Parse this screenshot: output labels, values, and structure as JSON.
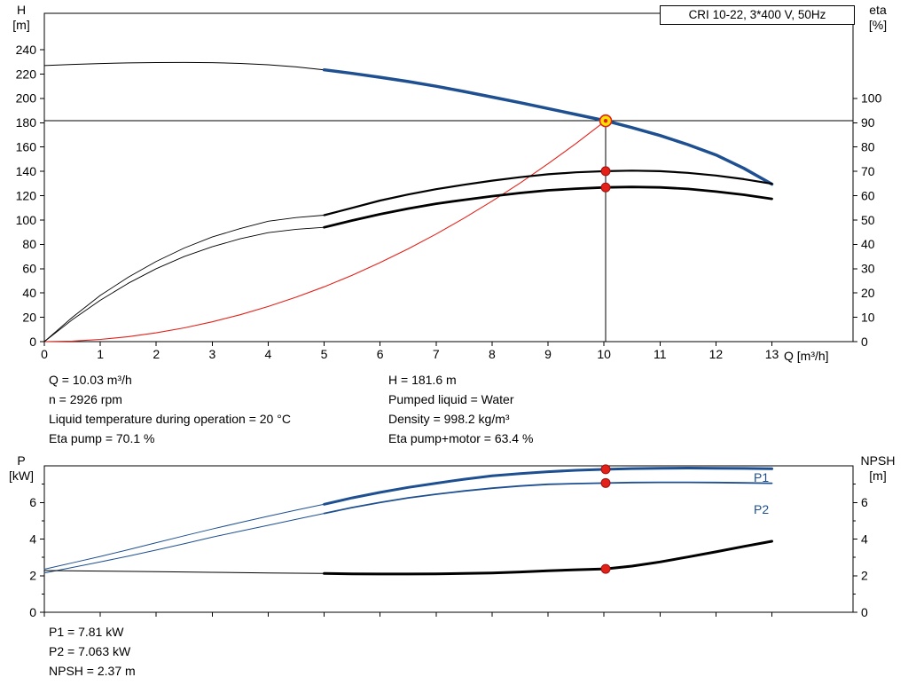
{
  "colors": {
    "blue": "#1d4f91",
    "red": "#e32119",
    "black": "#000000",
    "duty_fill": "#ffe000",
    "duty_ring": "#e32119",
    "dot": "#e32119",
    "dot_edge": "#9b1410"
  },
  "info_top": {
    "left": [
      "Q = 10.03 m³/h",
      "n = 2926 rpm",
      "Liquid temperature during operation = 20 °C",
      "Eta pump = 70.1 %"
    ],
    "right": [
      "H = 181.6 m",
      "Pumped liquid = Water",
      "Density = 998.2 kg/m³",
      "Eta pump+motor = 63.4 %"
    ]
  },
  "info_bottom": [
    "P1 = 7.81 kW",
    "P2 = 7.063 kW",
    "NPSH = 2.37 m"
  ],
  "chart_data": [
    {
      "type": "line",
      "title": "CRI 10-22, 3*400 V, 50Hz",
      "x_axis": {
        "label": "Q [m³/h]",
        "min": 0,
        "max": 14.45,
        "ticks": [
          0,
          1,
          2,
          3,
          4,
          5,
          6,
          7,
          8,
          9,
          10,
          11,
          12,
          13
        ]
      },
      "y_left": {
        "label": "H",
        "unit": "[m]",
        "min": 0,
        "max": 270,
        "ticks": [
          0,
          20,
          40,
          60,
          80,
          100,
          120,
          140,
          160,
          180,
          200,
          220,
          240
        ]
      },
      "y_right": {
        "label": "eta",
        "unit": "[%]",
        "min": 0,
        "max": 135,
        "ticks": [
          0,
          10,
          20,
          30,
          40,
          50,
          60,
          70,
          80,
          90,
          100
        ]
      },
      "crosshair": {
        "q": 10.03,
        "h": 181.6
      },
      "duty_point": {
        "q": 10.03,
        "h": 181.6,
        "eta_pump": 70.1,
        "eta_pump_motor": 63.4
      },
      "series": [
        {
          "name": "head-extension",
          "axis": "left",
          "color": "#000000",
          "width": 1,
          "points": [
            [
              0,
              227
            ],
            [
              0.5,
              228
            ],
            [
              1,
              228.7
            ],
            [
              1.5,
              229.2
            ],
            [
              2,
              229.5
            ],
            [
              2.5,
              229.6
            ],
            [
              3,
              229.4
            ],
            [
              3.5,
              228.8
            ],
            [
              4,
              227.7
            ],
            [
              4.5,
              225.9
            ],
            [
              5,
              223.5
            ]
          ]
        },
        {
          "name": "head-curve",
          "axis": "left",
          "color": "#1d4f91",
          "width": 3.5,
          "points": [
            [
              5,
              223.5
            ],
            [
              5.5,
              220.6
            ],
            [
              6,
              217.4
            ],
            [
              6.5,
              213.9
            ],
            [
              7,
              210
            ],
            [
              7.5,
              205.7
            ],
            [
              8,
              201.1
            ],
            [
              8.5,
              196.5
            ],
            [
              9,
              191.7
            ],
            [
              9.5,
              186.8
            ],
            [
              10.03,
              181.6
            ],
            [
              10.5,
              176
            ],
            [
              11,
              169.5
            ],
            [
              11.5,
              162
            ],
            [
              12,
              153.5
            ],
            [
              12.5,
              142.5
            ],
            [
              13,
              129.5
            ]
          ]
        },
        {
          "name": "system-curve",
          "axis": "left",
          "color": "#e32119",
          "width": 1.1,
          "points": [
            [
              0,
              0
            ],
            [
              0.5,
              0.45
            ],
            [
              1,
              1.81
            ],
            [
              1.5,
              4.06
            ],
            [
              2,
              7.22
            ],
            [
              2.5,
              11.28
            ],
            [
              3,
              16.25
            ],
            [
              3.5,
              22.12
            ],
            [
              4,
              28.88
            ],
            [
              4.5,
              36.56
            ],
            [
              5,
              45.13
            ],
            [
              5.5,
              54.61
            ],
            [
              6,
              64.99
            ],
            [
              6.5,
              76.27
            ],
            [
              7,
              88.46
            ],
            [
              7.5,
              101.55
            ],
            [
              8,
              115.54
            ],
            [
              8.5,
              130.43
            ],
            [
              9,
              146.23
            ],
            [
              9.5,
              162.93
            ],
            [
              10.03,
              181.6
            ]
          ]
        },
        {
          "name": "eta-pump-extension",
          "axis": "right",
          "color": "#000000",
          "width": 0.9,
          "points": [
            [
              0,
              0
            ],
            [
              0.5,
              10
            ],
            [
              1,
              19
            ],
            [
              1.5,
              26.5
            ],
            [
              2,
              33
            ],
            [
              2.5,
              38.5
            ],
            [
              3,
              43
            ],
            [
              3.5,
              46.5
            ],
            [
              4,
              49.5
            ],
            [
              4.5,
              51
            ],
            [
              5,
              52
            ]
          ]
        },
        {
          "name": "eta-pump",
          "axis": "right",
          "color": "#000000",
          "width": 2.2,
          "points": [
            [
              5,
              52
            ],
            [
              5.5,
              55
            ],
            [
              6,
              58
            ],
            [
              6.5,
              60.5
            ],
            [
              7,
              62.7
            ],
            [
              7.5,
              64.5
            ],
            [
              8,
              66.2
            ],
            [
              8.5,
              67.6
            ],
            [
              9,
              68.8
            ],
            [
              9.5,
              69.6
            ],
            [
              10.03,
              70.1
            ],
            [
              10.5,
              70.3
            ],
            [
              11,
              70.1
            ],
            [
              11.5,
              69.4
            ],
            [
              12,
              68.3
            ],
            [
              12.5,
              66.8
            ],
            [
              13,
              64.9
            ]
          ]
        },
        {
          "name": "eta-pump-motor-extension",
          "axis": "right",
          "color": "#000000",
          "width": 0.9,
          "points": [
            [
              0,
              0
            ],
            [
              0.5,
              9
            ],
            [
              1,
              17
            ],
            [
              1.5,
              24
            ],
            [
              2,
              30
            ],
            [
              2.5,
              35
            ],
            [
              3,
              39
            ],
            [
              3.5,
              42.3
            ],
            [
              4,
              44.8
            ],
            [
              4.5,
              46.2
            ],
            [
              5,
              47
            ]
          ]
        },
        {
          "name": "eta-pump-motor",
          "axis": "right",
          "color": "#000000",
          "width": 2.8,
          "points": [
            [
              5,
              47
            ],
            [
              5.5,
              49.8
            ],
            [
              6,
              52.4
            ],
            [
              6.5,
              54.7
            ],
            [
              7,
              56.7
            ],
            [
              7.5,
              58.3
            ],
            [
              8,
              59.8
            ],
            [
              8.5,
              61.1
            ],
            [
              9,
              62.2
            ],
            [
              9.5,
              62.9
            ],
            [
              10.03,
              63.4
            ],
            [
              10.5,
              63.6
            ],
            [
              11,
              63.4
            ],
            [
              11.5,
              62.8
            ],
            [
              12,
              61.7
            ],
            [
              12.5,
              60.4
            ],
            [
              13,
              58.7
            ]
          ]
        }
      ],
      "markers": [
        {
          "type": "duty",
          "axis": "left",
          "x": 10.03,
          "y": 181.6
        },
        {
          "type": "dot",
          "axis": "right",
          "x": 10.03,
          "y": 70.1
        },
        {
          "type": "dot",
          "axis": "right",
          "x": 10.03,
          "y": 63.4
        }
      ]
    },
    {
      "type": "line",
      "x_axis": {
        "label": "",
        "min": 0,
        "max": 14.45,
        "ticks": [
          0,
          1,
          2,
          3,
          4,
          5,
          6,
          7,
          8,
          9,
          10,
          11,
          12,
          13
        ]
      },
      "y_left": {
        "label": "P",
        "unit": "[kW]",
        "min": 0,
        "max": 8,
        "ticks": [
          0,
          2,
          4,
          6
        ],
        "minor_ticks": [
          1,
          3,
          5,
          7
        ]
      },
      "y_right": {
        "label": "NPSH",
        "unit": "[m]",
        "min": 0,
        "max": 8,
        "ticks": [
          0,
          2,
          4,
          6
        ],
        "minor_ticks": [
          1,
          3,
          5,
          7
        ]
      },
      "curve_labels": [
        {
          "text": "P1"
        },
        {
          "text": "P2"
        }
      ],
      "duty_point": {
        "q": 10.03,
        "p1": 7.81,
        "p2": 7.063,
        "npsh": 2.37
      },
      "series": [
        {
          "name": "p1-extension",
          "axis": "left",
          "color": "#1d4f91",
          "width": 1,
          "points": [
            [
              0,
              2.35
            ],
            [
              0.5,
              2.7
            ],
            [
              1,
              3.05
            ],
            [
              1.5,
              3.42
            ],
            [
              2,
              3.8
            ],
            [
              2.5,
              4.18
            ],
            [
              3,
              4.55
            ],
            [
              3.5,
              4.9
            ],
            [
              4,
              5.25
            ],
            [
              4.5,
              5.58
            ],
            [
              5,
              5.9
            ]
          ]
        },
        {
          "name": "p1-curve",
          "axis": "left",
          "color": "#1d4f91",
          "width": 3,
          "points": [
            [
              5,
              5.9
            ],
            [
              5.5,
              6.25
            ],
            [
              6,
              6.55
            ],
            [
              6.5,
              6.82
            ],
            [
              7,
              7.05
            ],
            [
              7.5,
              7.27
            ],
            [
              8,
              7.45
            ],
            [
              8.5,
              7.58
            ],
            [
              9,
              7.68
            ],
            [
              9.5,
              7.76
            ],
            [
              10.03,
              7.81
            ],
            [
              10.5,
              7.85
            ],
            [
              11,
              7.87
            ],
            [
              11.5,
              7.88
            ],
            [
              12,
              7.87
            ],
            [
              12.5,
              7.86
            ],
            [
              13,
              7.84
            ]
          ]
        },
        {
          "name": "p2-extension",
          "axis": "left",
          "color": "#1d4f91",
          "width": 1,
          "points": [
            [
              0,
              2.15
            ],
            [
              0.5,
              2.45
            ],
            [
              1,
              2.75
            ],
            [
              1.5,
              3.07
            ],
            [
              2,
              3.4
            ],
            [
              2.5,
              3.75
            ],
            [
              3,
              4.1
            ],
            [
              3.5,
              4.43
            ],
            [
              4,
              4.75
            ],
            [
              4.5,
              5.08
            ],
            [
              5,
              5.4
            ]
          ]
        },
        {
          "name": "p2-curve",
          "axis": "left",
          "color": "#1d4f91",
          "width": 1.8,
          "points": [
            [
              5,
              5.4
            ],
            [
              5.5,
              5.72
            ],
            [
              6,
              6.0
            ],
            [
              6.5,
              6.25
            ],
            [
              7,
              6.45
            ],
            [
              7.5,
              6.63
            ],
            [
              8,
              6.78
            ],
            [
              8.5,
              6.9
            ],
            [
              9,
              6.99
            ],
            [
              9.5,
              7.03
            ],
            [
              10.03,
              7.06
            ],
            [
              10.5,
              7.09
            ],
            [
              11,
              7.1
            ],
            [
              11.5,
              7.1
            ],
            [
              12,
              7.09
            ],
            [
              12.5,
              7.07
            ],
            [
              13,
              7.05
            ]
          ]
        },
        {
          "name": "npsh-extension",
          "axis": "right",
          "color": "#000000",
          "width": 1,
          "points": [
            [
              0,
              2.28
            ],
            [
              1,
              2.25
            ],
            [
              2,
              2.22
            ],
            [
              3,
              2.18
            ],
            [
              4,
              2.15
            ],
            [
              5,
              2.12
            ]
          ]
        },
        {
          "name": "npsh-curve",
          "axis": "right",
          "color": "#000000",
          "width": 3,
          "points": [
            [
              5,
              2.12
            ],
            [
              5.5,
              2.1
            ],
            [
              6,
              2.09
            ],
            [
              6.5,
              2.09
            ],
            [
              7,
              2.1
            ],
            [
              7.5,
              2.12
            ],
            [
              8,
              2.15
            ],
            [
              8.5,
              2.2
            ],
            [
              9,
              2.27
            ],
            [
              9.5,
              2.32
            ],
            [
              10.03,
              2.37
            ],
            [
              10.5,
              2.52
            ],
            [
              11,
              2.75
            ],
            [
              11.5,
              3.02
            ],
            [
              12,
              3.3
            ],
            [
              12.5,
              3.6
            ],
            [
              13,
              3.88
            ]
          ]
        }
      ],
      "markers": [
        {
          "type": "dot",
          "axis": "left",
          "x": 10.03,
          "y": 7.81
        },
        {
          "type": "dot",
          "axis": "left",
          "x": 10.03,
          "y": 7.063
        },
        {
          "type": "dot",
          "axis": "right",
          "x": 10.03,
          "y": 2.37
        }
      ]
    }
  ]
}
